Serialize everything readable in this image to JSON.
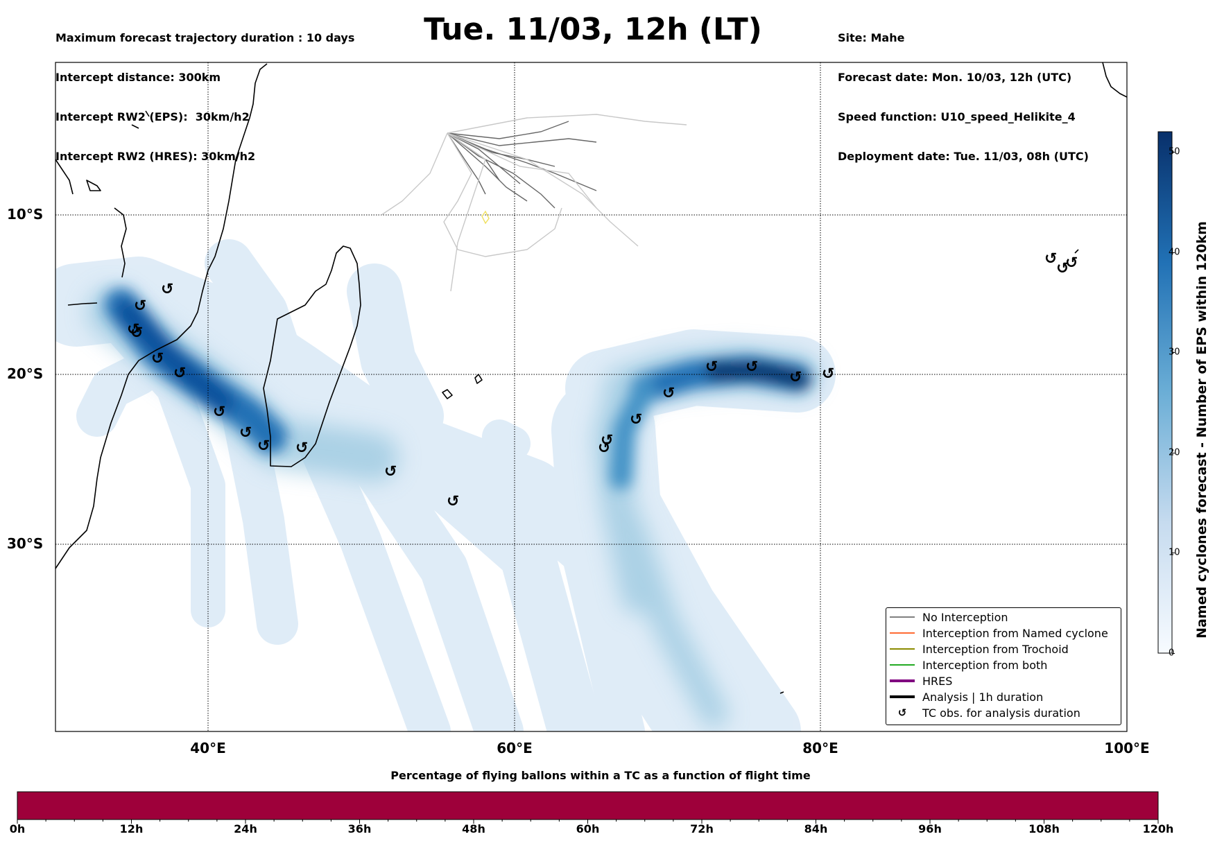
{
  "header": {
    "left_lines": [
      "Maximum forecast trajectory duration : 10 days",
      "Intercept distance: 300km",
      "Intercept RW2 (EPS):  30km/h2",
      "Intercept RW2 (HRES): 30km/h2"
    ],
    "title": "Tue. 11/03, 12h (LT)",
    "right_lines": [
      "Site: Mahe",
      "Forecast date: Mon. 10/03, 12h (UTC)",
      "Speed function: U10_speed_Helikite_4",
      "Deployment date: Tue. 11/03, 08h (UTC)"
    ]
  },
  "map": {
    "lat_labels": [
      "10°S",
      "20°S",
      "30°S"
    ],
    "lon_labels": [
      "40°E",
      "60°E",
      "80°E",
      "100°E"
    ],
    "colors": {
      "density_dark": "#08306b",
      "density_light": "#deebf7",
      "trajectory": "#666666",
      "trajectory_light": "#c8c8c8"
    }
  },
  "legend": {
    "items": [
      {
        "label": "No Interception",
        "color": "#808080",
        "kind": "line"
      },
      {
        "label": "Interception from Named cyclone",
        "color": "#ff6a33",
        "kind": "line"
      },
      {
        "label": "Interception from Trochoid",
        "color": "#8b8b00",
        "kind": "line"
      },
      {
        "label": "Interception from both",
        "color": "#22aa22",
        "kind": "line"
      },
      {
        "label": "HRES",
        "color": "#800080",
        "kind": "thick"
      },
      {
        "label": "Analysis | 1h duration",
        "color": "#000000",
        "kind": "thick"
      },
      {
        "label": "TC obs. for analysis duration",
        "color": "#000000",
        "kind": "symbol"
      }
    ]
  },
  "colorbar": {
    "title": "Named cyclones forecast - Number of EPS within 120km",
    "ticks": [
      "0",
      "10",
      "20",
      "30",
      "40",
      "50"
    ],
    "min": 0,
    "max": 52,
    "color_low": "#f7fbff",
    "color_high": "#08306b"
  },
  "flight_bar": {
    "title": "Percentage of flying ballons within a TC as a function of flight time",
    "ticks": [
      "0h",
      "12h",
      "24h",
      "36h",
      "48h",
      "60h",
      "72h",
      "84h",
      "96h",
      "108h",
      "120h"
    ],
    "fill_color": "#9e003a"
  },
  "tc_symbol": "↺"
}
